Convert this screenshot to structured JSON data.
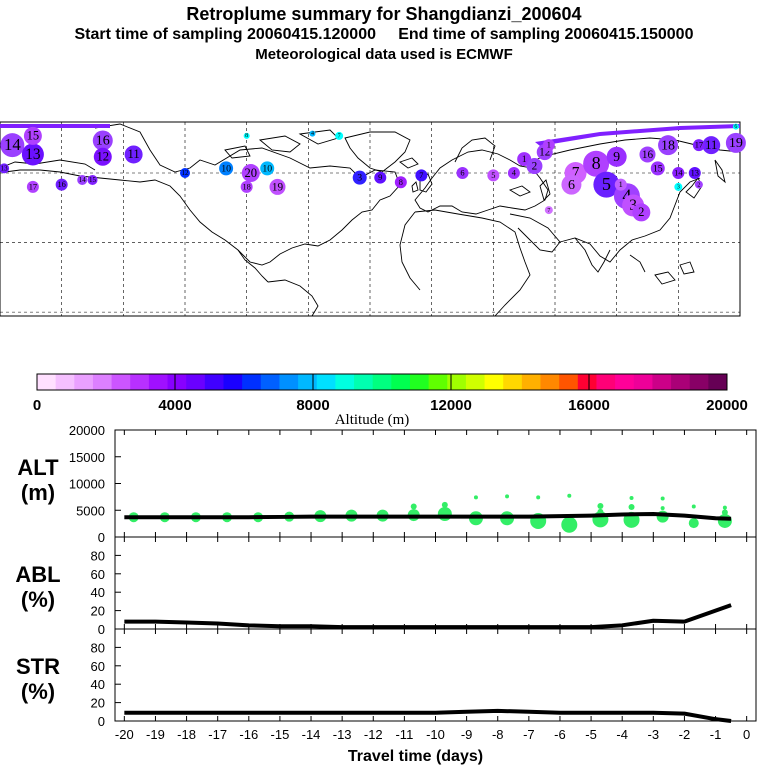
{
  "header": {
    "title": "Retroplume summary for Shangdianzi_200604",
    "subtitle_line1": "Start time of sampling 20060415.120000     End time of sampling 20060415.150000",
    "subtitle_line2": "Meteorological data used is ECMWF"
  },
  "colorbar": {
    "label": "Altitude (m)",
    "ticks": [
      "0",
      "4000",
      "8000",
      "12000",
      "16000",
      "20000"
    ],
    "min": 0,
    "max": 20000,
    "colors": [
      "#ffe0ff",
      "#f5c0ff",
      "#eaa0ff",
      "#dd80ff",
      "#cc55ff",
      "#b830ff",
      "#a010ff",
      "#8800ff",
      "#6a00ff",
      "#4000ff",
      "#1a00ff",
      "#0030ff",
      "#0060ff",
      "#0090ff",
      "#00b8ff",
      "#00e0ff",
      "#00ffe0",
      "#00ffb0",
      "#00ff80",
      "#00ff50",
      "#20ff20",
      "#60ff00",
      "#a0ff00",
      "#d0ff00",
      "#ffff00",
      "#ffd800",
      "#ffb000",
      "#ff8800",
      "#ff5500",
      "#ff0033",
      "#ff0077",
      "#ff0099",
      "#ee0099",
      "#cc0088",
      "#aa0077",
      "#880066",
      "#660055"
    ]
  },
  "map": {
    "markers": [
      {
        "label": "14",
        "lon": -174,
        "lat": 72,
        "size": 12,
        "color": "#9a40ff"
      },
      {
        "label": "13",
        "lon": -164,
        "lat": 68,
        "size": 11,
        "color": "#6a10ff"
      },
      {
        "label": "15",
        "lon": -164,
        "lat": 76,
        "size": 9,
        "color": "#b040ff"
      },
      {
        "label": "16",
        "lon": -130,
        "lat": 74,
        "size": 10,
        "color": "#9a40ff"
      },
      {
        "label": "12",
        "lon": -130,
        "lat": 67,
        "size": 9,
        "color": "#7a10ff"
      },
      {
        "label": "11",
        "lon": -115,
        "lat": 68,
        "size": 9,
        "color": "#7020ff"
      },
      {
        "label": "10",
        "lon": -70,
        "lat": 62,
        "size": 7,
        "color": "#0080ff"
      },
      {
        "label": "20",
        "lon": -58,
        "lat": 60,
        "size": 9,
        "color": "#b040ff"
      },
      {
        "label": "10",
        "lon": -50,
        "lat": 62,
        "size": 7,
        "color": "#00b8ff"
      },
      {
        "label": "19",
        "lon": -45,
        "lat": 54,
        "size": 8,
        "color": "#c050ff"
      },
      {
        "label": "18",
        "lon": -60,
        "lat": 54,
        "size": 6,
        "color": "#b040ff"
      },
      {
        "label": "17",
        "lon": -164,
        "lat": 54,
        "size": 6,
        "color": "#b040ff"
      },
      {
        "label": "16",
        "lon": -150,
        "lat": 55,
        "size": 6,
        "color": "#7020ff"
      },
      {
        "label": "15",
        "lon": -135,
        "lat": 57,
        "size": 5,
        "color": "#8020ff"
      },
      {
        "label": "14",
        "lon": -140,
        "lat": 57,
        "size": 5,
        "color": "#9a40ff"
      },
      {
        "label": "13",
        "lon": -178,
        "lat": 62,
        "size": 5,
        "color": "#7020ff"
      },
      {
        "label": "12",
        "lon": -90,
        "lat": 60,
        "size": 5,
        "color": "#0030ff"
      },
      {
        "label": "3",
        "lon": -5,
        "lat": 58,
        "size": 7,
        "color": "#3020ff"
      },
      {
        "label": "9",
        "lon": 5,
        "lat": 58,
        "size": 6,
        "color": "#6010ff"
      },
      {
        "label": "8",
        "lon": 15,
        "lat": 56,
        "size": 6,
        "color": "#a020ff"
      },
      {
        "label": "7",
        "lon": 25,
        "lat": 59,
        "size": 6,
        "color": "#4010ff"
      },
      {
        "label": "6",
        "lon": 45,
        "lat": 60,
        "size": 6,
        "color": "#9a30ff"
      },
      {
        "label": "5",
        "lon": 60,
        "lat": 59,
        "size": 6,
        "color": "#c050ff"
      },
      {
        "label": "4",
        "lon": 70,
        "lat": 60,
        "size": 6,
        "color": "#a030ff"
      },
      {
        "label": "1",
        "lon": 75,
        "lat": 66,
        "size": 7,
        "color": "#a030ff"
      },
      {
        "label": "2",
        "lon": 80,
        "lat": 63,
        "size": 8,
        "color": "#9a40ff"
      },
      {
        "label": "12",
        "lon": 85,
        "lat": 69,
        "size": 8,
        "color": "#a040ff"
      },
      {
        "label": "1",
        "lon": 87,
        "lat": 72,
        "size": 6,
        "color": "#b040ff"
      },
      {
        "label": "7",
        "lon": 100,
        "lat": 60,
        "size": 11,
        "color": "#d060ff"
      },
      {
        "label": "8",
        "lon": 110,
        "lat": 64,
        "size": 13,
        "color": "#b040ff"
      },
      {
        "label": "9",
        "lon": 120,
        "lat": 67,
        "size": 10,
        "color": "#9a30ff"
      },
      {
        "label": "6",
        "lon": 98,
        "lat": 55,
        "size": 10,
        "color": "#cc66ff"
      },
      {
        "label": "5",
        "lon": 115,
        "lat": 55,
        "size": 13,
        "color": "#6a20ff"
      },
      {
        "label": "4",
        "lon": 125,
        "lat": 50,
        "size": 13,
        "color": "#a040ff"
      },
      {
        "label": "3",
        "lon": 128,
        "lat": 46,
        "size": 11,
        "color": "#c050ff"
      },
      {
        "label": "2",
        "lon": 132,
        "lat": 43,
        "size": 9,
        "color": "#b040ff"
      },
      {
        "label": "1",
        "lon": 122,
        "lat": 55,
        "size": 6,
        "color": "#c060ff"
      },
      {
        "label": "18",
        "lon": 145,
        "lat": 72,
        "size": 10,
        "color": "#9a40ff"
      },
      {
        "label": "16",
        "lon": 135,
        "lat": 68,
        "size": 8,
        "color": "#a040ff"
      },
      {
        "label": "15",
        "lon": 140,
        "lat": 62,
        "size": 7,
        "color": "#9a30ff"
      },
      {
        "label": "14",
        "lon": 150,
        "lat": 60,
        "size": 6,
        "color": "#8a20ff"
      },
      {
        "label": "13",
        "lon": 158,
        "lat": 60,
        "size": 6,
        "color": "#6010ff"
      },
      {
        "label": "11",
        "lon": 166,
        "lat": 72,
        "size": 9,
        "color": "#7020ff"
      },
      {
        "label": "19",
        "lon": 178,
        "lat": 73,
        "size": 10,
        "color": "#9a40ff"
      },
      {
        "label": "17",
        "lon": 160,
        "lat": 72,
        "size": 6,
        "color": "#8020ff"
      },
      {
        "label": "6",
        "lon": 178,
        "lat": 80,
        "size": 3,
        "color": "#00ffff"
      },
      {
        "label": "4",
        "lon": -28,
        "lat": 77,
        "size": 3,
        "color": "#00b8ff"
      },
      {
        "label": "7",
        "lon": -15,
        "lat": 76,
        "size": 4,
        "color": "#00ffff"
      },
      {
        "label": "8",
        "lon": -60,
        "lat": 76,
        "size": 3,
        "color": "#00ffff"
      },
      {
        "label": "7",
        "lon": 87,
        "lat": 44,
        "size": 4,
        "color": "#d070ff"
      },
      {
        "label": "3",
        "lon": 150,
        "lat": 54,
        "size": 4,
        "color": "#00ffff"
      },
      {
        "label": "2",
        "lon": 160,
        "lat": 55,
        "size": 4,
        "color": "#a040ff"
      }
    ]
  },
  "chart_data": [
    {
      "type": "line",
      "panel": "ALT",
      "ylabel": "ALT\n(m)",
      "ylabel_line1": "ALT",
      "ylabel_line2": "(m)",
      "ylim": [
        0,
        20000
      ],
      "yticks": [
        "20000",
        "15000",
        "10000",
        "5000",
        "0"
      ],
      "x": [
        -20,
        -19,
        -18,
        -17,
        -16,
        -15,
        -14,
        -13,
        -12,
        -11,
        -10,
        -9,
        -8,
        -7,
        -6,
        -5,
        -4,
        -3,
        -2,
        -1,
        -0.5
      ],
      "values": [
        3700,
        3700,
        3700,
        3700,
        3700,
        3750,
        3800,
        3800,
        3800,
        3800,
        3800,
        3800,
        3800,
        3800,
        3900,
        4000,
        4200,
        4300,
        4000,
        3500,
        3400
      ],
      "scatter_points": [
        {
          "x": -19.7,
          "y": 3700,
          "r": 5
        },
        {
          "x": -18.7,
          "y": 3700,
          "r": 5
        },
        {
          "x": -17.7,
          "y": 3700,
          "r": 5
        },
        {
          "x": -16.7,
          "y": 3700,
          "r": 5
        },
        {
          "x": -15.7,
          "y": 3700,
          "r": 5
        },
        {
          "x": -14.7,
          "y": 3800,
          "r": 5
        },
        {
          "x": -13.7,
          "y": 3900,
          "r": 6
        },
        {
          "x": -12.7,
          "y": 4000,
          "r": 6
        },
        {
          "x": -11.7,
          "y": 4000,
          "r": 6
        },
        {
          "x": -10.7,
          "y": 4100,
          "r": 6
        },
        {
          "x": -9.7,
          "y": 4300,
          "r": 7
        },
        {
          "x": -8.7,
          "y": 3500,
          "r": 7
        },
        {
          "x": -7.7,
          "y": 3500,
          "r": 7
        },
        {
          "x": -6.7,
          "y": 3000,
          "r": 8
        },
        {
          "x": -5.7,
          "y": 2300,
          "r": 8
        },
        {
          "x": -4.7,
          "y": 3300,
          "r": 8
        },
        {
          "x": -3.7,
          "y": 3200,
          "r": 8
        },
        {
          "x": -2.7,
          "y": 3800,
          "r": 6
        },
        {
          "x": -1.7,
          "y": 2600,
          "r": 5
        },
        {
          "x": -0.7,
          "y": 3000,
          "r": 7
        },
        {
          "x": -10.7,
          "y": 5700,
          "r": 3
        },
        {
          "x": -9.7,
          "y": 6000,
          "r": 3
        },
        {
          "x": -8.7,
          "y": 7400,
          "r": 2
        },
        {
          "x": -7.7,
          "y": 7600,
          "r": 2
        },
        {
          "x": -6.7,
          "y": 7400,
          "r": 2
        },
        {
          "x": -5.7,
          "y": 7700,
          "r": 2
        },
        {
          "x": -4.7,
          "y": 5800,
          "r": 3
        },
        {
          "x": -4.7,
          "y": 4700,
          "r": 3
        },
        {
          "x": -3.7,
          "y": 7300,
          "r": 2
        },
        {
          "x": -3.7,
          "y": 5600,
          "r": 3
        },
        {
          "x": -2.7,
          "y": 7200,
          "r": 2
        },
        {
          "x": -2.7,
          "y": 5400,
          "r": 2
        },
        {
          "x": -1.7,
          "y": 5700,
          "r": 2
        },
        {
          "x": -0.7,
          "y": 5500,
          "r": 2
        },
        {
          "x": -0.7,
          "y": 4600,
          "r": 3
        }
      ]
    },
    {
      "type": "line",
      "panel": "ABL",
      "ylabel": "ABL\n(%)",
      "ylabel_line1": "ABL",
      "ylabel_line2": "(%)",
      "ylim": [
        0,
        100
      ],
      "yticks": [
        "80",
        "60",
        "40",
        "20",
        "0"
      ],
      "x": [
        -20,
        -19,
        -18,
        -17,
        -16,
        -15,
        -14,
        -13,
        -12,
        -11,
        -10,
        -9,
        -8,
        -7,
        -6,
        -5,
        -4,
        -3,
        -2,
        -1,
        -0.5
      ],
      "values": [
        8,
        8,
        7,
        6,
        4,
        3,
        3,
        2,
        2,
        2,
        2,
        2,
        2,
        2,
        2,
        2,
        4,
        9,
        8,
        20,
        26
      ]
    },
    {
      "type": "line",
      "panel": "STR",
      "ylabel": "STR\n(%)",
      "ylabel_line1": "STR",
      "ylabel_line2": "(%)",
      "ylim": [
        0,
        100
      ],
      "yticks": [
        "80",
        "60",
        "40",
        "20",
        "0"
      ],
      "x": [
        -20,
        -19,
        -18,
        -17,
        -16,
        -15,
        -14,
        -13,
        -12,
        -11,
        -10,
        -9,
        -8,
        -7,
        -6,
        -5,
        -4,
        -3,
        -2,
        -1,
        -0.5
      ],
      "values": [
        9,
        9,
        9,
        9,
        9,
        9,
        9,
        9,
        9,
        9,
        9,
        10,
        11,
        10,
        9,
        9,
        9,
        9,
        8,
        2,
        0
      ],
      "xlabel": "Travel time (days)",
      "xticks": [
        "-20",
        "-19",
        "-18",
        "-17",
        "-16",
        "-15",
        "-14",
        "-13",
        "-12",
        "-11",
        "-10",
        "-9",
        "-8",
        "-7",
        "-6",
        "-5",
        "-4",
        "-3",
        "-2",
        "-1",
        "0"
      ]
    }
  ]
}
